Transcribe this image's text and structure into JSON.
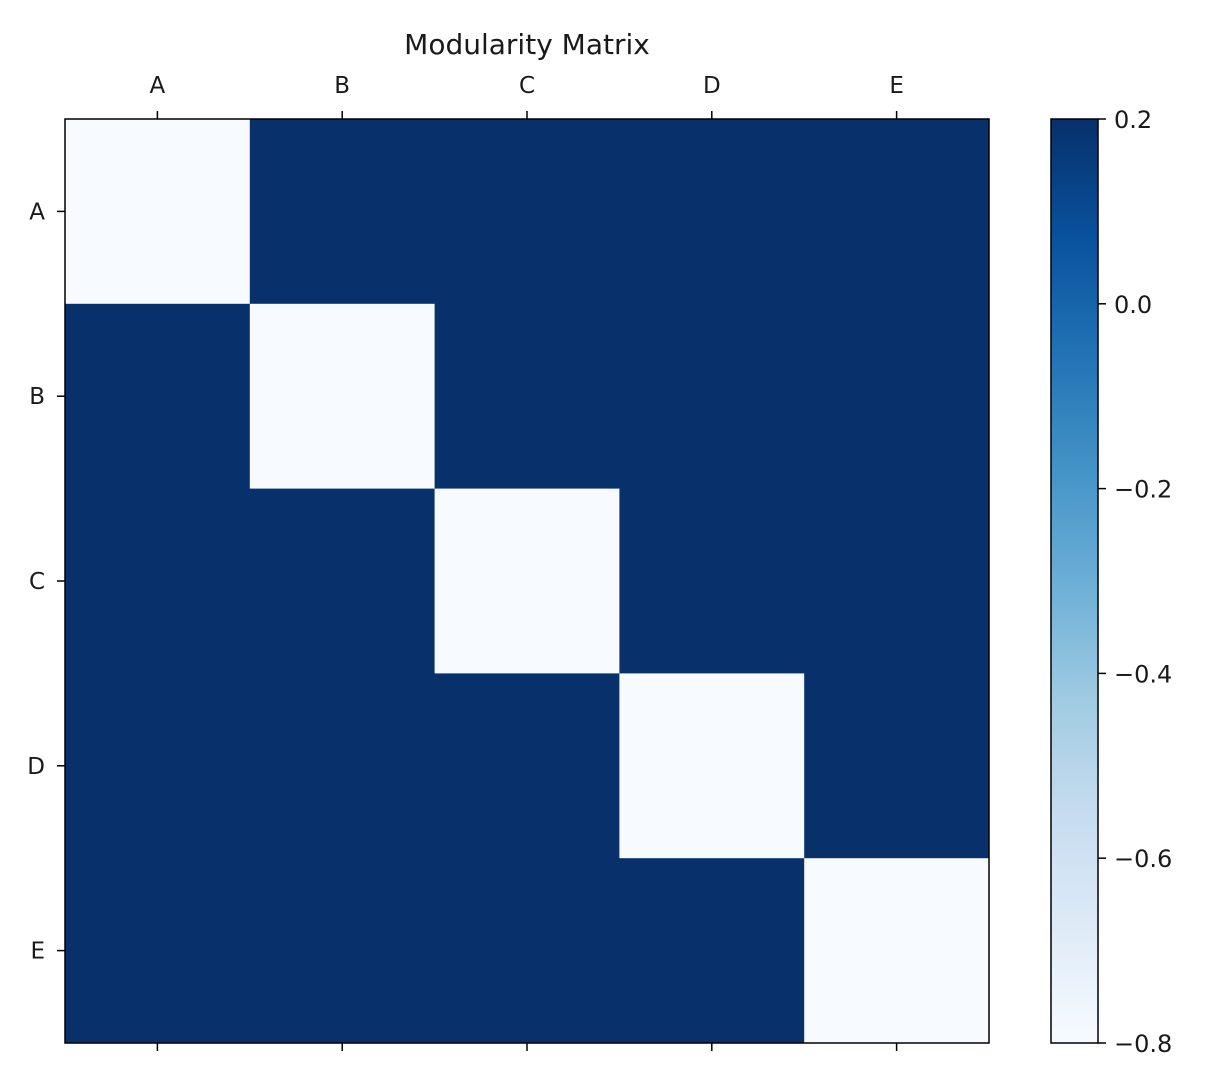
{
  "chart_data": {
    "type": "heatmap",
    "title": "Modularity Matrix",
    "x_categories": [
      "A",
      "B",
      "C",
      "D",
      "E"
    ],
    "y_categories": [
      "A",
      "B",
      "C",
      "D",
      "E"
    ],
    "x_tick_position": "top",
    "matrix": [
      [
        -0.8,
        0.2,
        0.2,
        0.2,
        0.2
      ],
      [
        0.2,
        -0.8,
        0.2,
        0.2,
        0.2
      ],
      [
        0.2,
        0.2,
        -0.8,
        0.2,
        0.2
      ],
      [
        0.2,
        0.2,
        0.2,
        -0.8,
        0.2
      ],
      [
        0.2,
        0.2,
        0.2,
        0.2,
        -0.8
      ]
    ],
    "colormap": "Blues",
    "colorbar": {
      "vmin": -0.8,
      "vmax": 0.2,
      "ticks": [
        0.2,
        0.0,
        -0.2,
        -0.4,
        -0.6,
        -0.8
      ],
      "tick_labels": [
        "0.2",
        "0.0",
        "−0.2",
        "−0.4",
        "−0.6",
        "−0.8"
      ],
      "placement": "right"
    },
    "colors": {
      "low": "#f7fbff",
      "high": "#08306b"
    },
    "grid": false
  }
}
